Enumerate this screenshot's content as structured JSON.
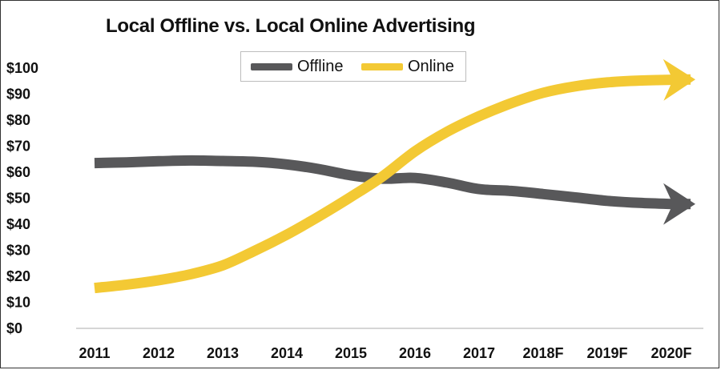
{
  "chart_data": {
    "type": "line",
    "title": "Local Offline vs. Local Online Advertising",
    "xlabel": "",
    "ylabel": "",
    "categories": [
      "2011",
      "2012",
      "2013",
      "2014",
      "2015",
      "2016",
      "2017",
      "2018F",
      "2019F",
      "2020F"
    ],
    "y_ticks": [
      "$0",
      "$10",
      "$20",
      "$30",
      "$40",
      "$50",
      "$60",
      "$70",
      "$80",
      "$90",
      "$100"
    ],
    "ylim": [
      0,
      100
    ],
    "legend_position": "top-center",
    "grid": false,
    "series": [
      {
        "name": "Offline",
        "color": "#58585a",
        "x": [
          0,
          0.5,
          1,
          1.5,
          2,
          2.5,
          3,
          3.5,
          4,
          4.5,
          5,
          5.5,
          6,
          6.5,
          7,
          7.5,
          8,
          8.5,
          9,
          9.3
        ],
        "values": [
          63.5,
          63.8,
          64.2,
          64.5,
          64.3,
          64,
          63,
          61.2,
          58.8,
          57.5,
          57.8,
          56,
          53.5,
          52.8,
          51.6,
          50.3,
          49,
          48.2,
          47.8,
          47.8
        ]
      },
      {
        "name": "Online",
        "color": "#f3c934",
        "x": [
          0,
          0.5,
          1,
          1.5,
          2,
          2.5,
          3,
          3.5,
          4,
          4.5,
          5,
          5.5,
          6,
          6.5,
          7,
          7.5,
          8,
          8.5,
          9,
          9.3
        ],
        "values": [
          15.5,
          16.8,
          18.5,
          20.8,
          24.2,
          29.8,
          36,
          43,
          50.5,
          58.5,
          68,
          75.5,
          81.5,
          86.5,
          90.5,
          93,
          94.5,
          95.2,
          95.5,
          95.6
        ]
      }
    ]
  }
}
